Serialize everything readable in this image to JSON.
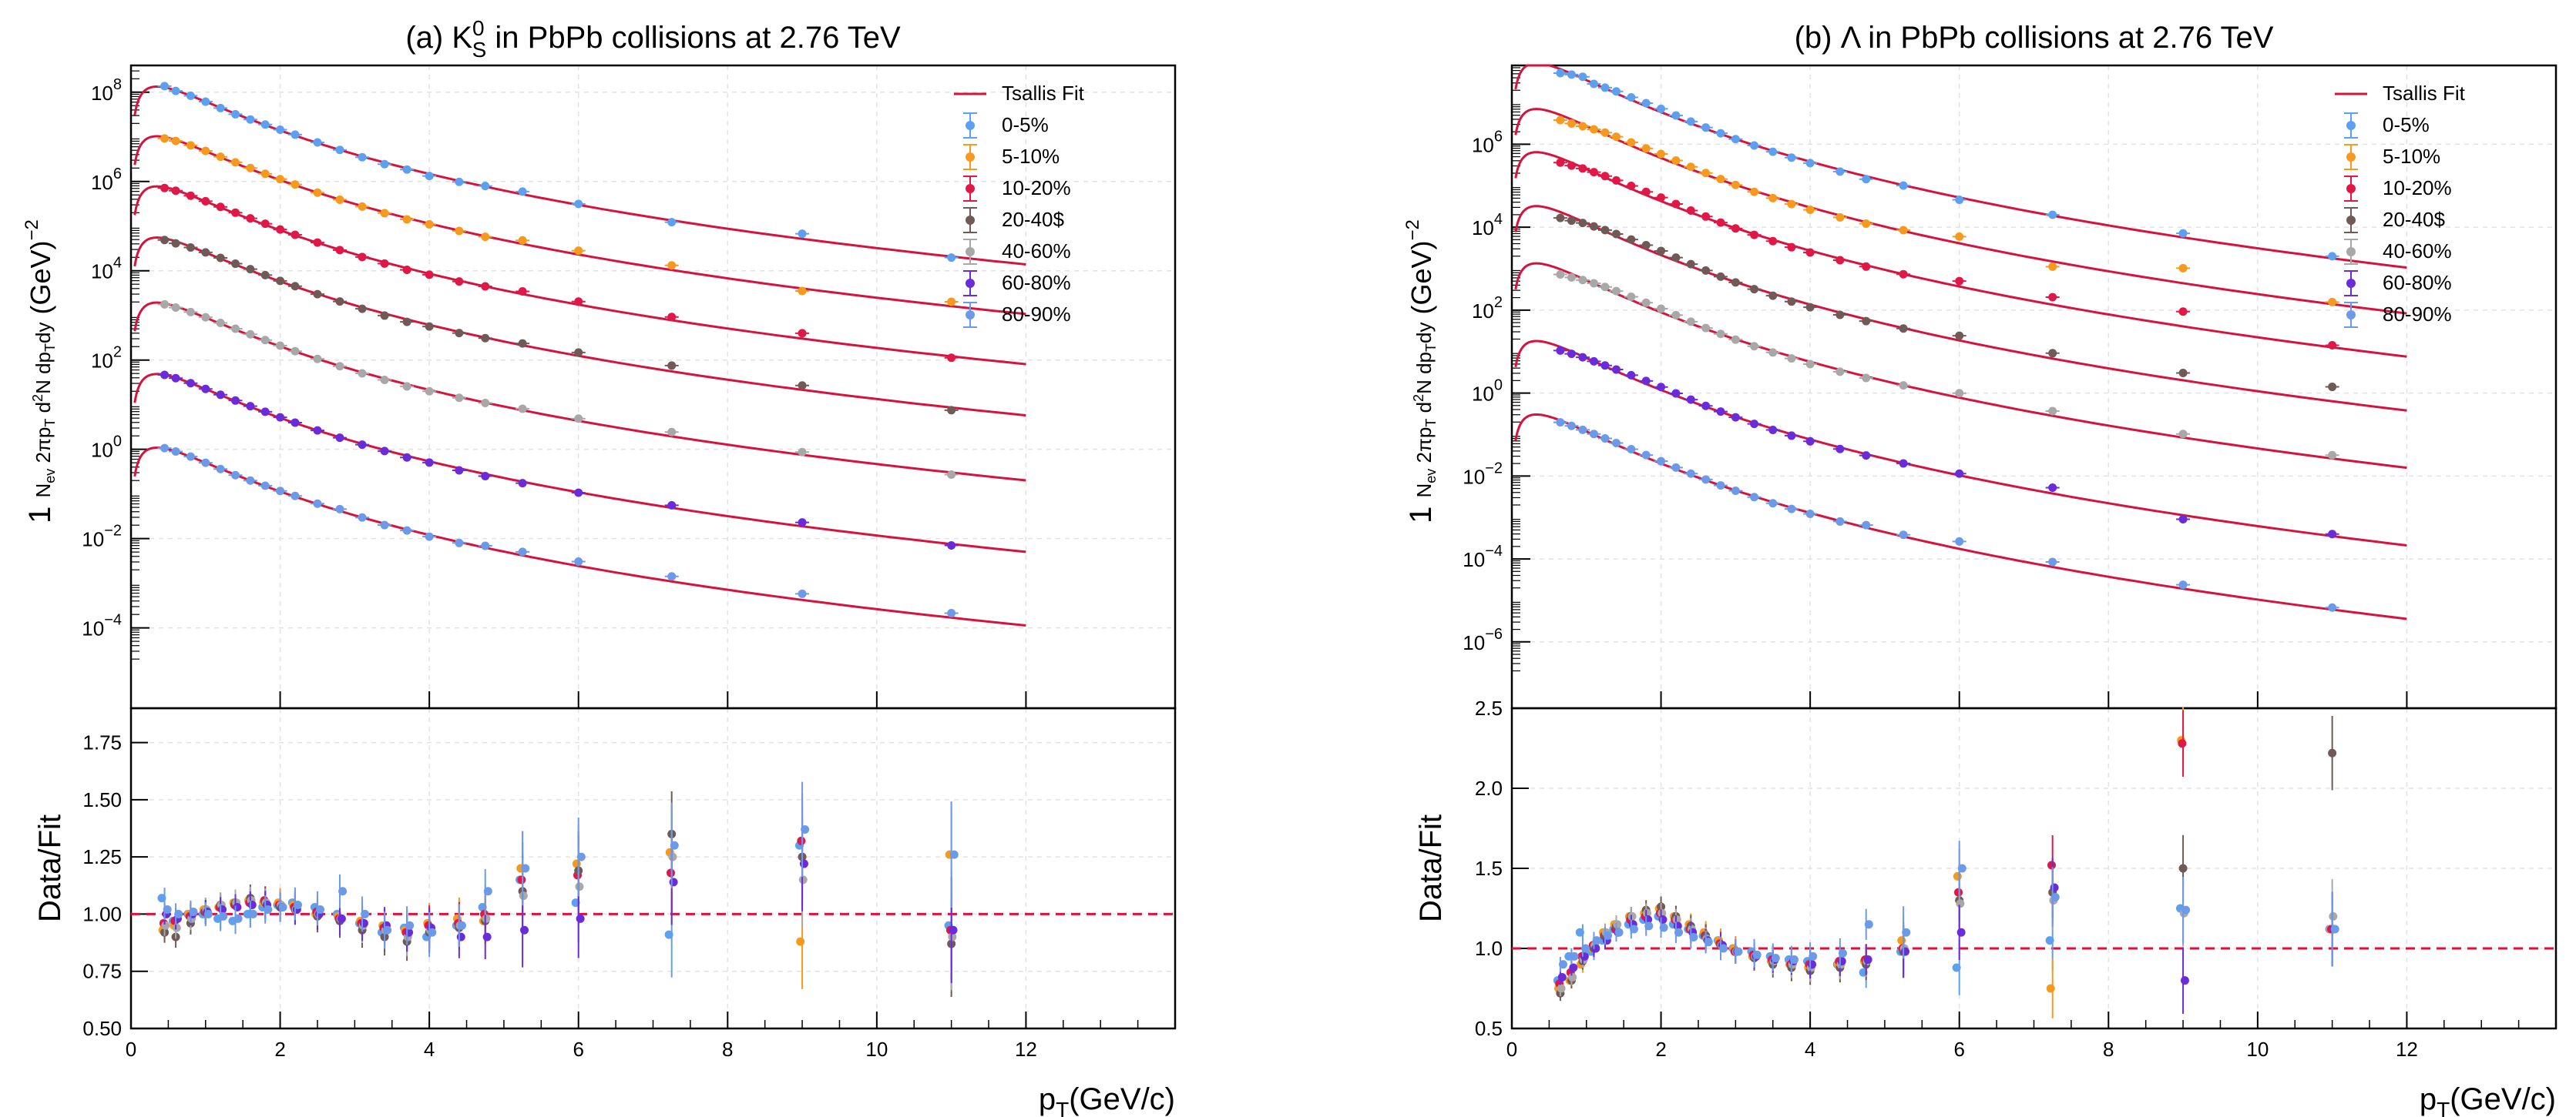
{
  "figure": {
    "x_axis_label": "p",
    "x_axis_label_sub": "T",
    "x_axis_label_unit": "(GeV/c)",
    "ratio_axis_label": "Data/Fit",
    "spectrum_axis_label": {
      "one": "1",
      "nev": "N",
      "nev_sub": "ev",
      "twopi": "2πp",
      "twopi_sub": "T",
      "d2n": "d",
      "d2n_sup": "2",
      "d2n_n": "N",
      "dpt": "dp",
      "dpt_sub": "T",
      "dpt_dy": "dy",
      "unit": "(GeV)",
      "unit_sup": "−2"
    }
  },
  "colors": {
    "fit": "#d4143e",
    "c0": "#5ea0f0",
    "c1": "#f59a1f",
    "c2": "#e01848",
    "c3": "#6f5a55",
    "c4": "#a8a8a8",
    "c5": "#6a2bd8",
    "c6": "#6c9ae8"
  },
  "chart_data": [
    {
      "type": "scatter",
      "panel": "a",
      "title_prefix": "(a) K",
      "title_sup": "0",
      "title_sub": "S",
      "title_suffix": " in PbPb collisions at 2.76 TeV",
      "log_y": true,
      "xlim": [
        0,
        14
      ],
      "ylim_exponent": [
        -5.8,
        8.6
      ],
      "ratio_ylim": [
        0.5,
        1.9
      ],
      "x_ticks": [
        0,
        2,
        4,
        6,
        8,
        10,
        12
      ],
      "y_ticks_exponent": [
        -4,
        -2,
        0,
        2,
        4,
        6,
        8
      ],
      "ratio_ticks": [
        "0.50",
        "0.75",
        "1.00",
        "1.25",
        "1.50",
        "1.75"
      ],
      "ratio_tick_values": [
        0.5,
        0.75,
        1.0,
        1.25,
        1.5,
        1.75
      ],
      "fit_x_range": [
        0.05,
        12
      ],
      "legend": {
        "position": "top-right",
        "fit_label": "Tsallis Fit"
      },
      "series": [
        {
          "name": "0-5%",
          "color_key": "c0",
          "peak_x": 0.6,
          "peak_y": 110000000.0,
          "x": [
            0.45,
            0.6,
            0.8,
            1.0,
            1.2,
            1.4,
            1.6,
            1.8,
            2.0,
            2.2,
            2.5,
            2.8,
            3.1,
            3.4,
            3.7,
            4.0,
            4.4,
            4.75,
            5.25,
            6.0,
            7.25,
            9.0,
            11.0
          ],
          "ratio": [
            1.07,
            0.97,
            1.0,
            1.0,
            0.98,
            0.97,
            1.0,
            1.03,
            1.04,
            1.05,
            1.03,
            1.0,
            0.96,
            0.92,
            0.94,
            0.9,
            0.95,
            1.03,
            1.15,
            1.05,
            0.91,
            1.3,
            0.95
          ]
        },
        {
          "name": "5-10%",
          "color_key": "c1",
          "peak_x": 0.6,
          "peak_y": 8500000.0,
          "x": [
            0.45,
            0.6,
            0.8,
            1.0,
            1.2,
            1.4,
            1.6,
            1.8,
            2.0,
            2.2,
            2.5,
            2.8,
            3.1,
            3.4,
            3.7,
            4.0,
            4.4,
            4.75,
            5.25,
            6.0,
            7.25,
            9.0,
            11.0
          ],
          "ratio": [
            0.93,
            0.95,
            1.0,
            1.02,
            1.03,
            1.05,
            1.06,
            1.05,
            1.05,
            1.04,
            1.0,
            0.99,
            0.97,
            0.95,
            0.93,
            0.96,
            0.98,
            0.97,
            1.2,
            1.22,
            1.27,
            0.88,
            1.26
          ]
        },
        {
          "name": "10-20%",
          "color_key": "c2",
          "peak_x": 0.65,
          "peak_y": 600000.0,
          "x": [
            0.45,
            0.6,
            0.8,
            1.0,
            1.2,
            1.4,
            1.6,
            1.8,
            2.0,
            2.2,
            2.5,
            2.8,
            3.1,
            3.4,
            3.7,
            4.0,
            4.4,
            4.75,
            5.25,
            6.0,
            7.25,
            9.0,
            11.0
          ],
          "ratio": [
            0.96,
            0.97,
            0.99,
            1.01,
            1.03,
            1.04,
            1.05,
            1.06,
            1.04,
            1.03,
            1.01,
            0.98,
            0.96,
            0.94,
            0.92,
            0.95,
            0.96,
            1.0,
            1.15,
            1.17,
            1.18,
            1.32,
            0.93
          ]
        },
        {
          "name": "20-40$",
          "color_key": "c3",
          "peak_x": 0.7,
          "peak_y": 40000.0,
          "x": [
            0.45,
            0.6,
            0.8,
            1.0,
            1.2,
            1.4,
            1.6,
            1.8,
            2.0,
            2.2,
            2.5,
            2.8,
            3.1,
            3.4,
            3.7,
            4.0,
            4.4,
            4.75,
            5.25,
            6.0,
            7.25,
            9.0,
            11.0
          ],
          "ratio": [
            0.92,
            0.9,
            0.96,
            1.01,
            1.04,
            1.05,
            1.07,
            1.05,
            1.03,
            1.02,
            0.99,
            0.97,
            0.93,
            0.9,
            0.88,
            0.92,
            0.94,
            0.97,
            1.1,
            1.19,
            1.35,
            1.25,
            0.87
          ]
        },
        {
          "name": "40-60%",
          "color_key": "c4",
          "peak_x": 0.7,
          "peak_y": 1400.0,
          "x": [
            0.45,
            0.6,
            0.8,
            1.0,
            1.2,
            1.4,
            1.6,
            1.8,
            2.0,
            2.2,
            2.5,
            2.8,
            3.1,
            3.4,
            3.7,
            4.0,
            4.4,
            4.75,
            5.25,
            6.0,
            7.25,
            9.0,
            11.0
          ],
          "ratio": [
            0.95,
            0.94,
            0.98,
            1.02,
            1.04,
            1.05,
            1.06,
            1.05,
            1.04,
            1.02,
            1.0,
            0.98,
            0.95,
            0.93,
            0.9,
            0.93,
            0.95,
            0.98,
            1.08,
            1.12,
            1.25,
            1.15,
            0.9
          ]
        },
        {
          "name": "60-80%",
          "color_key": "c5",
          "peak_x": 0.6,
          "peak_y": 40,
          "x": [
            0.45,
            0.6,
            0.8,
            1.0,
            1.2,
            1.4,
            1.6,
            1.8,
            2.0,
            2.2,
            2.5,
            2.8,
            3.1,
            3.4,
            3.7,
            4.0,
            4.4,
            4.75,
            5.25,
            6.0,
            7.25,
            9.0,
            11.0
          ],
          "ratio": [
            1.0,
            0.98,
            1.0,
            1.01,
            1.02,
            1.03,
            1.04,
            1.04,
            1.03,
            1.02,
            1.0,
            0.98,
            0.96,
            0.95,
            0.92,
            0.94,
            0.9,
            0.9,
            0.93,
            0.98,
            1.14,
            1.22,
            0.93
          ]
        },
        {
          "name": "80-90%",
          "color_key": "c6",
          "peak_x": 0.5,
          "peak_y": 1.0,
          "x": [
            0.45,
            0.6,
            0.8,
            1.0,
            1.2,
            1.4,
            1.6,
            1.8,
            2.0,
            2.2,
            2.5,
            2.8,
            3.1,
            3.4,
            3.7,
            4.0,
            4.4,
            4.75,
            5.25,
            6.0,
            7.25,
            9.0,
            11.0
          ],
          "ratio": [
            1.02,
            1.0,
            1.01,
            1.0,
            0.99,
            0.98,
            1.0,
            1.02,
            1.03,
            1.04,
            1.02,
            1.1,
            1.0,
            0.93,
            0.95,
            0.92,
            0.95,
            1.1,
            1.2,
            1.25,
            1.3,
            1.37,
            1.26
          ]
        }
      ]
    },
    {
      "type": "scatter",
      "panel": "b",
      "title_prefix": "(b) Λ in PbPb collisions at 2.76 TeV",
      "title_sup": "",
      "title_sub": "",
      "title_suffix": "",
      "log_y": true,
      "xlim": [
        0,
        14
      ],
      "ylim_exponent": [
        -7.6,
        7.9
      ],
      "ratio_ylim": [
        0.5,
        2.5
      ],
      "x_ticks": [
        0,
        2,
        4,
        6,
        8,
        10,
        12
      ],
      "y_ticks_exponent": [
        -6,
        -4,
        -2,
        0,
        2,
        4,
        6
      ],
      "ratio_ticks": [
        "0.5",
        "1.0",
        "1.5",
        "2.0",
        "2.5"
      ],
      "ratio_tick_values": [
        0.5,
        1.0,
        1.5,
        2.0,
        2.5
      ],
      "fit_x_range": [
        0.05,
        12
      ],
      "legend": {
        "position": "top-right",
        "fit_label": "Tsallis Fit"
      },
      "series": [
        {
          "name": "0-5%",
          "color_key": "c0",
          "peak_x": 1.5,
          "peak_y": 14000000.0,
          "x": [
            0.65,
            0.8,
            0.95,
            1.1,
            1.25,
            1.4,
            1.6,
            1.8,
            2.0,
            2.2,
            2.4,
            2.6,
            2.8,
            3.0,
            3.25,
            3.5,
            3.75,
            4.0,
            4.4,
            4.75,
            5.25,
            6.0,
            7.25,
            9.0,
            11.0
          ],
          "ratio": [
            0.8,
            0.95,
            1.1,
            0.98,
            1.05,
            1.12,
            1.15,
            1.18,
            1.2,
            1.15,
            1.12,
            1.08,
            1.05,
            1.0,
            0.98,
            0.95,
            0.93,
            0.92,
            0.9,
            0.85,
            0.98,
            0.88,
            1.05,
            1.25,
            1.12
          ]
        },
        {
          "name": "5-10%",
          "color_key": "c1",
          "peak_x": 1.5,
          "peak_y": 1100000.0,
          "x": [
            0.65,
            0.8,
            0.95,
            1.1,
            1.25,
            1.4,
            1.6,
            1.8,
            2.0,
            2.2,
            2.4,
            2.6,
            2.8,
            3.0,
            3.25,
            3.5,
            3.75,
            4.0,
            4.4,
            4.75,
            5.25,
            6.0,
            7.25,
            9.0,
            11.0
          ],
          "ratio": [
            0.75,
            0.8,
            0.9,
            1.0,
            1.1,
            1.15,
            1.2,
            1.22,
            1.25,
            1.2,
            1.15,
            1.1,
            1.05,
            1.0,
            0.95,
            0.92,
            0.9,
            0.88,
            0.9,
            0.92,
            1.05,
            1.45,
            0.75,
            2.3,
            1.12
          ]
        },
        {
          "name": "10-20%",
          "color_key": "c2",
          "peak_x": 1.5,
          "peak_y": 100000.0,
          "x": [
            0.65,
            0.8,
            0.95,
            1.1,
            1.25,
            1.4,
            1.6,
            1.8,
            2.0,
            2.2,
            2.4,
            2.6,
            2.8,
            3.0,
            3.25,
            3.5,
            3.75,
            4.0,
            4.4,
            4.75,
            5.25,
            6.0,
            7.25,
            9.0,
            11.0
          ],
          "ratio": [
            0.78,
            0.85,
            0.95,
            1.02,
            1.08,
            1.12,
            1.18,
            1.2,
            1.22,
            1.18,
            1.12,
            1.08,
            1.03,
            0.98,
            0.96,
            0.93,
            0.9,
            0.9,
            0.92,
            0.93,
            1.0,
            1.35,
            1.52,
            2.28,
            1.12
          ]
        },
        {
          "name": "20-40$",
          "color_key": "c3",
          "peak_x": 1.4,
          "peak_y": 6000.0,
          "x": [
            0.65,
            0.8,
            0.95,
            1.1,
            1.25,
            1.4,
            1.6,
            1.8,
            2.0,
            2.2,
            2.4,
            2.6,
            2.8,
            3.0,
            3.25,
            3.5,
            3.75,
            4.0,
            4.4,
            4.75,
            5.25,
            6.0,
            7.25,
            9.0,
            11.0
          ],
          "ratio": [
            0.72,
            0.8,
            0.92,
            1.0,
            1.08,
            1.14,
            1.2,
            1.24,
            1.26,
            1.2,
            1.14,
            1.08,
            1.02,
            0.98,
            0.94,
            0.9,
            0.88,
            0.86,
            0.88,
            0.9,
            0.98,
            1.3,
            1.35,
            1.5,
            2.22
          ]
        },
        {
          "name": "40-60%",
          "color_key": "c4",
          "peak_x": 1.4,
          "peak_y": 250,
          "x": [
            0.65,
            0.8,
            0.95,
            1.1,
            1.25,
            1.4,
            1.6,
            1.8,
            2.0,
            2.2,
            2.4,
            2.6,
            2.8,
            3.0,
            3.25,
            3.5,
            3.75,
            4.0,
            4.4,
            4.75,
            5.25,
            6.0,
            7.25,
            9.0,
            11.0
          ],
          "ratio": [
            0.75,
            0.82,
            0.93,
            1.02,
            1.1,
            1.15,
            1.2,
            1.22,
            1.22,
            1.18,
            1.12,
            1.06,
            1.02,
            0.98,
            0.95,
            0.92,
            0.9,
            0.88,
            0.9,
            0.92,
            1.0,
            1.28,
            1.3,
            1.22,
            1.2
          ]
        },
        {
          "name": "60-80%",
          "color_key": "c5",
          "peak_x": 1.0,
          "peak_y": 7.0,
          "x": [
            0.65,
            0.8,
            0.95,
            1.1,
            1.25,
            1.4,
            1.6,
            1.8,
            2.0,
            2.2,
            2.4,
            2.6,
            2.8,
            3.0,
            3.25,
            3.5,
            3.75,
            4.0,
            4.4,
            4.75,
            5.25,
            6.0,
            7.25,
            9.0,
            11.0
          ],
          "ratio": [
            0.82,
            0.88,
            0.95,
            1.0,
            1.05,
            1.1,
            1.15,
            1.18,
            1.18,
            1.14,
            1.1,
            1.05,
            1.02,
            0.98,
            0.95,
            0.93,
            0.92,
            0.9,
            0.92,
            0.93,
            0.98,
            1.1,
            1.38,
            0.8,
            1.12
          ]
        },
        {
          "name": "80-90%",
          "color_key": "c6",
          "peak_x": 0.8,
          "peak_y": 0.17,
          "x": [
            0.65,
            0.8,
            0.95,
            1.1,
            1.25,
            1.4,
            1.6,
            1.8,
            2.0,
            2.2,
            2.4,
            2.6,
            2.8,
            3.0,
            3.25,
            3.5,
            3.75,
            4.0,
            4.4,
            4.75,
            5.25,
            6.0,
            7.25,
            9.0,
            11.0
          ],
          "ratio": [
            0.9,
            0.95,
            1.0,
            1.05,
            1.08,
            1.1,
            1.12,
            1.14,
            1.13,
            1.1,
            1.07,
            1.04,
            1.0,
            0.98,
            0.96,
            0.94,
            0.93,
            0.95,
            0.97,
            1.15,
            1.1,
            1.5,
            1.32,
            1.24,
            1.12
          ]
        }
      ]
    }
  ]
}
